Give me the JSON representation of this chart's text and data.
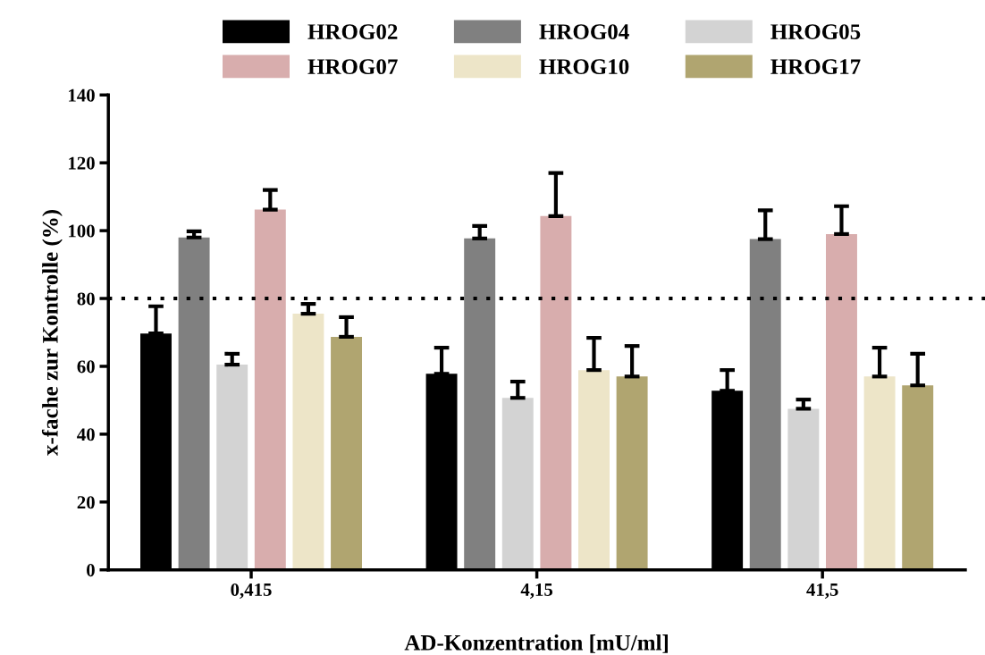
{
  "chart_data": {
    "type": "bar",
    "xlabel": "AD-Konzentration [mU/ml]",
    "ylabel": "x-fache zur Kontrolle (%)",
    "categories": [
      "0,415",
      "4,15",
      "41,5"
    ],
    "series": [
      {
        "name": "HROG02",
        "color": "#000000",
        "values": [
          69.7,
          57.8,
          52.8
        ],
        "errors": [
          [
            69.7,
            77.7
          ],
          [
            57.8,
            65.5
          ],
          [
            52.8,
            58.9
          ]
        ]
      },
      {
        "name": "HROG04",
        "color": "#808080",
        "values": [
          98,
          97.7,
          97.5
        ],
        "errors": [
          [
            98,
            99.8
          ],
          [
            97.7,
            101.4
          ],
          [
            97.5,
            106
          ]
        ]
      },
      {
        "name": "HROG05",
        "color": "#d3d3d3",
        "values": [
          60.5,
          50.7,
          47.5
        ],
        "errors": [
          [
            60.5,
            63.7
          ],
          [
            50.7,
            55.5
          ],
          [
            47.5,
            50.2
          ]
        ]
      },
      {
        "name": "HROG07",
        "color": "#d8adad",
        "values": [
          106.2,
          104.3,
          99
        ],
        "errors": [
          [
            106.2,
            112
          ],
          [
            104.3,
            117
          ],
          [
            99,
            107.2
          ]
        ]
      },
      {
        "name": "HROG10",
        "color": "#ede5c8",
        "values": [
          75.5,
          58.9,
          57
        ],
        "errors": [
          [
            75.5,
            78.4
          ],
          [
            58.9,
            68.4
          ],
          [
            57,
            65.5
          ]
        ]
      },
      {
        "name": "HROG17",
        "color": "#b0a570",
        "values": [
          68.7,
          57,
          54.4
        ],
        "errors": [
          [
            68.7,
            74.5
          ],
          [
            57,
            66
          ],
          [
            54.4,
            63.7
          ]
        ]
      }
    ],
    "ylim": [
      0,
      140
    ],
    "yticks": [
      0,
      20,
      40,
      60,
      80,
      100,
      120,
      140
    ],
    "ref_lines": [
      {
        "axis": "y",
        "value": 80,
        "color": "#000000",
        "line_style": "dotted"
      }
    ],
    "grid": false,
    "legend": "top"
  }
}
